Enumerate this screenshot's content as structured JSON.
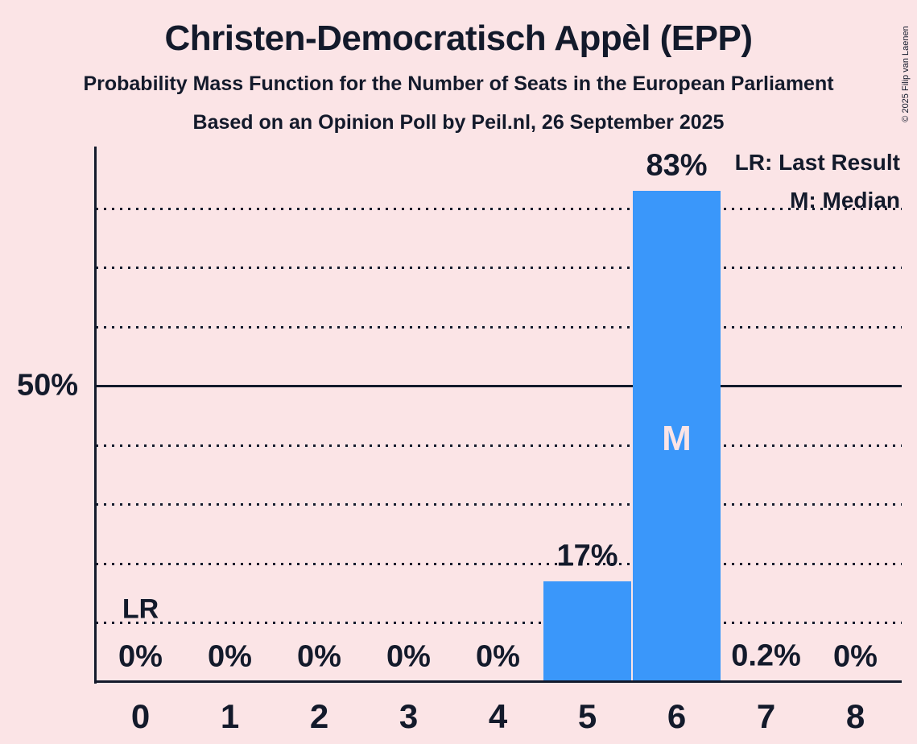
{
  "title": "Christen-Democratisch Appèl (EPP)",
  "subtitle": "Probability Mass Function for the Number of Seats in the European Parliament",
  "source_line": "Based on an Opinion Poll by Peil.nl, 26 September 2025",
  "copyright": "© 2025 Filip van Laenen",
  "legend": {
    "last_result": "LR: Last Result",
    "median": "M: Median"
  },
  "y_axis": {
    "tick_label_50": "50%"
  },
  "markers": {
    "last_result_label": "LR",
    "median_label": "M"
  },
  "colors": {
    "background": "#FBE4E6",
    "bar": "#3A97FA",
    "ink": "#131A2B"
  },
  "chart_data": {
    "type": "bar",
    "title": "Christen-Democratisch Appèl (EPP)",
    "subtitle": "Probability Mass Function for the Number of Seats in the European Parliament",
    "source": "Based on an Opinion Poll by Peil.nl, 26 September 2025",
    "xlabel": "",
    "ylabel": "",
    "categories": [
      "0",
      "1",
      "2",
      "3",
      "4",
      "5",
      "6",
      "7",
      "8"
    ],
    "values": [
      0,
      0,
      0,
      0,
      0,
      17,
      83,
      0.2,
      0
    ],
    "value_labels": [
      "0%",
      "0%",
      "0%",
      "0%",
      "0%",
      "17%",
      "83%",
      "0.2%",
      "0%"
    ],
    "ylim": [
      0,
      90
    ],
    "gridlines_pct": [
      10,
      20,
      30,
      40,
      50,
      60,
      70,
      80
    ],
    "solid_gridline_pct": 50,
    "y_tick_labels": {
      "50": "50%"
    },
    "grid": "horizontal dotted",
    "legend_position": "top-right",
    "last_result_seat": 0,
    "median_seat": 6
  }
}
